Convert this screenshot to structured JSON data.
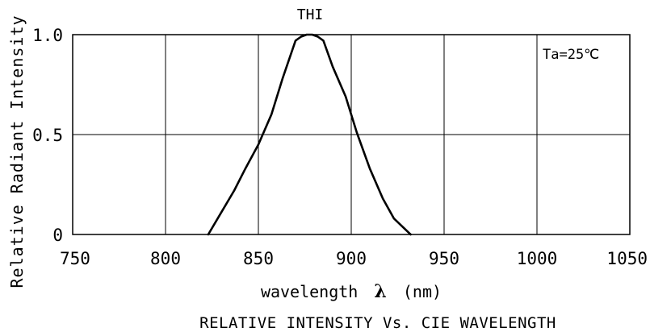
{
  "chart_data": {
    "type": "line",
    "title": "THI",
    "xlabel_text": "wavelength",
    "xlabel_symbol": "λ",
    "xlabel_unit": "(nm)",
    "ylabel": "Relative Radiant Intensity",
    "caption": "RELATIVE INTENSITY Vs. CIE WAVELENGTH",
    "annotation": "Ta=25℃",
    "xlim": [
      750,
      1050
    ],
    "ylim": [
      0,
      1.0
    ],
    "x_ticks": [
      750,
      800,
      850,
      900,
      950,
      1000,
      1050
    ],
    "x_tick_labels": [
      "750",
      "800",
      "850",
      "900",
      "950",
      "1000",
      "1050"
    ],
    "y_ticks": [
      0,
      0.5,
      1.0
    ],
    "y_tick_labels": [
      "0",
      "0.5",
      "1.0"
    ],
    "grid": true,
    "series": [
      {
        "name": "THI",
        "color": "#000000",
        "x": [
          823,
          830,
          837,
          843,
          850,
          857,
          863,
          870,
          873,
          876,
          879,
          882,
          885,
          890,
          897,
          903,
          910,
          917,
          923,
          932
        ],
        "y": [
          0.0,
          0.11,
          0.22,
          0.33,
          0.45,
          0.6,
          0.78,
          0.97,
          0.99,
          1.0,
          1.0,
          0.99,
          0.97,
          0.84,
          0.69,
          0.51,
          0.33,
          0.18,
          0.08,
          0.0
        ]
      }
    ]
  }
}
